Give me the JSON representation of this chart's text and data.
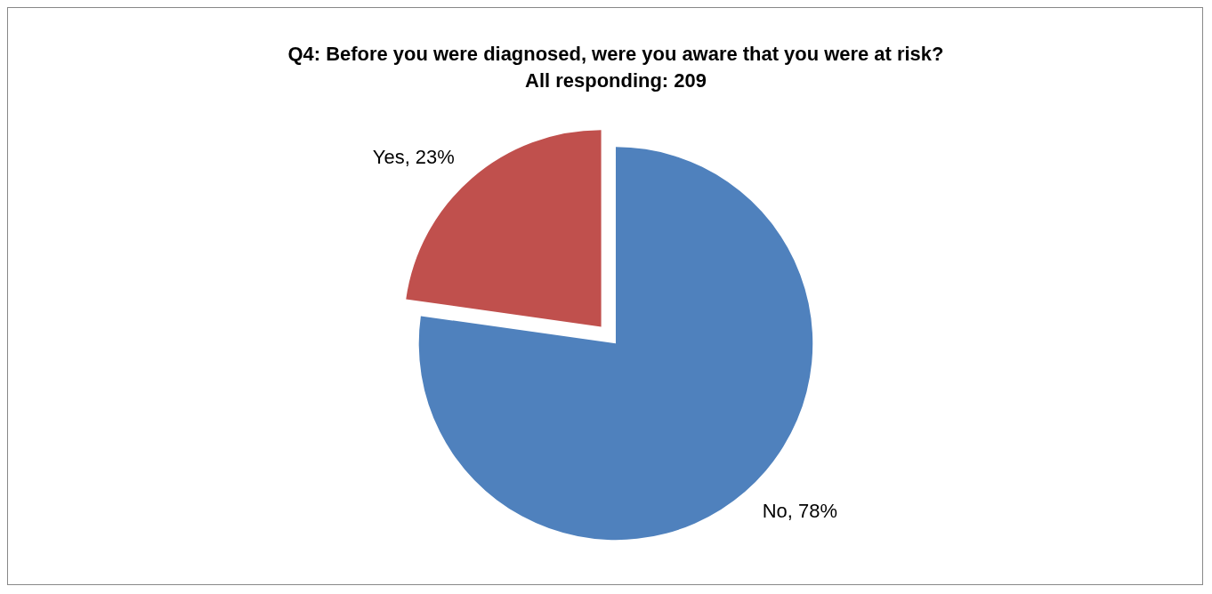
{
  "chart_data": {
    "type": "pie",
    "title": "Q4: Before you were diagnosed, were you aware that you were at risk?",
    "subtitle": "All responding: 209",
    "categories": [
      "No",
      "Yes"
    ],
    "values": [
      78,
      23
    ],
    "colors": [
      "#4f81bd",
      "#c0504d"
    ],
    "value_labels": [
      ", 78%",
      ", 23%"
    ],
    "legend": false
  }
}
